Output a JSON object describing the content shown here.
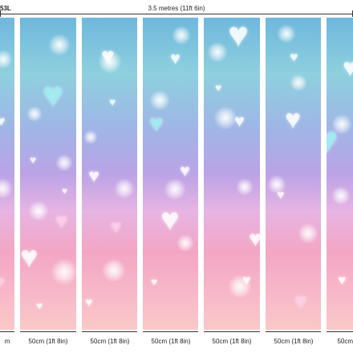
{
  "header": {
    "code_fragment": "53L",
    "total_width": "3.5 metres (11ft 6in)"
  },
  "panels": {
    "width_label": "50cm (1ft 8in)",
    "labels": [
      "m",
      "50cm (1ft 8in)",
      "50cm (1ft 8in)",
      "50cm (1ft 8in)",
      "50cm (1ft 8in)",
      "50cm (1ft 8in)",
      "50cm"
    ]
  },
  "colors": {
    "top": "#6fb7dd",
    "middle": "#bba3e6",
    "bottom": "#f9c9c8"
  }
}
